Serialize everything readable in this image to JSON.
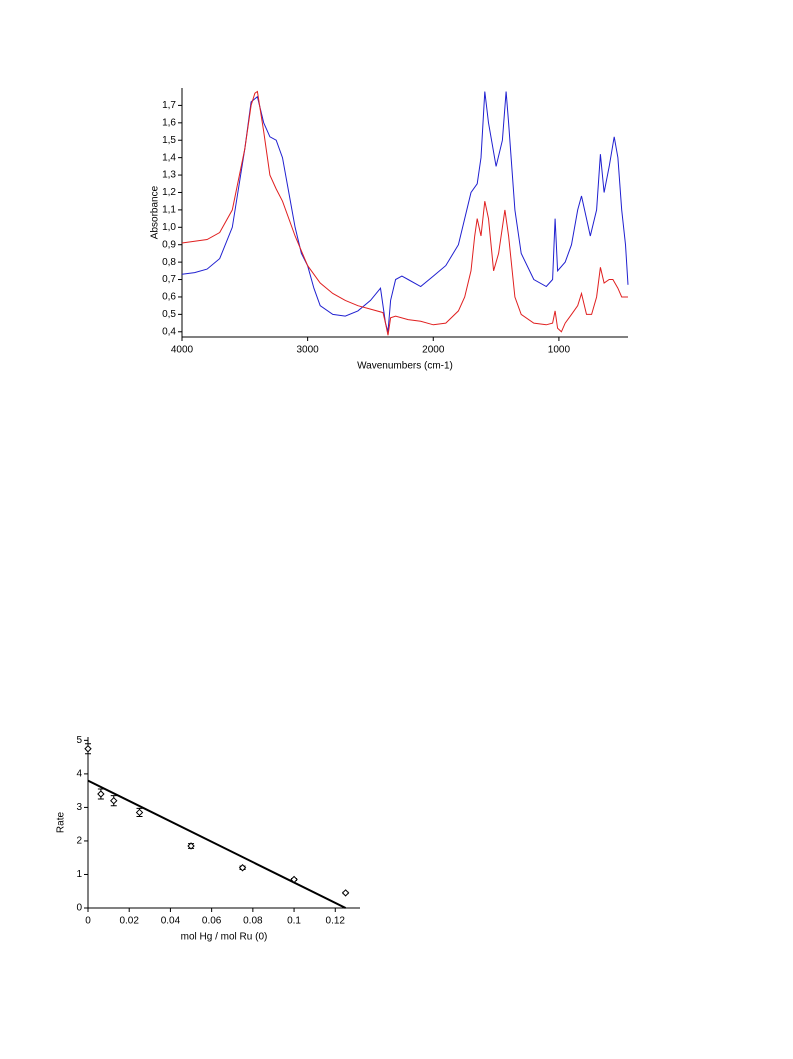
{
  "chart_data": [
    {
      "type": "line",
      "xlabel": "Wavenumbers (cm-1)",
      "ylabel": "Absorbance",
      "xlim": [
        4000,
        450
      ],
      "ylim": [
        0.37,
        1.8
      ],
      "xticks": [
        4000,
        3000,
        2000,
        1000
      ],
      "yticks": [
        {
          "value": 0.4,
          "label": "0,4"
        },
        {
          "value": 0.5,
          "label": "0,5"
        },
        {
          "value": 0.6,
          "label": "0,6"
        },
        {
          "value": 0.7,
          "label": "0,7"
        },
        {
          "value": 0.8,
          "label": "0,8"
        },
        {
          "value": 0.9,
          "label": "0,9"
        },
        {
          "value": 1.0,
          "label": "1,0"
        },
        {
          "value": 1.1,
          "label": "1,1"
        },
        {
          "value": 1.2,
          "label": "1,2"
        },
        {
          "value": 1.3,
          "label": "1,3"
        },
        {
          "value": 1.4,
          "label": "1,4"
        },
        {
          "value": 1.5,
          "label": "1,5"
        },
        {
          "value": 1.6,
          "label": "1,6"
        },
        {
          "value": 1.7,
          "label": "1,7"
        }
      ],
      "series": [
        {
          "color": "#2020d0",
          "x": [
            4000,
            3900,
            3800,
            3700,
            3600,
            3500,
            3450,
            3400,
            3350,
            3300,
            3250,
            3200,
            3150,
            3100,
            3050,
            3000,
            2950,
            2900,
            2800,
            2700,
            2600,
            2500,
            2420,
            2380,
            2360,
            2340,
            2300,
            2250,
            2200,
            2100,
            2000,
            1900,
            1800,
            1750,
            1700,
            1650,
            1620,
            1590,
            1560,
            1500,
            1450,
            1420,
            1400,
            1350,
            1300,
            1200,
            1100,
            1050,
            1030,
            1010,
            950,
            900,
            850,
            820,
            780,
            750,
            700,
            670,
            640,
            600,
            560,
            530,
            500,
            470,
            450
          ],
          "values": [
            0.73,
            0.74,
            0.76,
            0.82,
            1.0,
            1.45,
            1.72,
            1.75,
            1.6,
            1.52,
            1.5,
            1.4,
            1.2,
            1.0,
            0.85,
            0.78,
            0.65,
            0.55,
            0.5,
            0.49,
            0.52,
            0.58,
            0.65,
            0.45,
            0.4,
            0.58,
            0.7,
            0.72,
            0.7,
            0.66,
            0.72,
            0.78,
            0.9,
            1.05,
            1.2,
            1.25,
            1.4,
            1.78,
            1.6,
            1.35,
            1.5,
            1.78,
            1.6,
            1.1,
            0.85,
            0.7,
            0.66,
            0.7,
            1.05,
            0.75,
            0.8,
            0.9,
            1.1,
            1.18,
            1.05,
            0.95,
            1.1,
            1.42,
            1.2,
            1.35,
            1.52,
            1.4,
            1.1,
            0.9,
            0.67
          ]
        },
        {
          "color": "#e02020",
          "x": [
            4000,
            3900,
            3800,
            3700,
            3600,
            3500,
            3450,
            3420,
            3400,
            3350,
            3300,
            3250,
            3200,
            3100,
            3000,
            2900,
            2800,
            2700,
            2600,
            2500,
            2400,
            2380,
            2360,
            2340,
            2300,
            2200,
            2100,
            2000,
            1900,
            1800,
            1750,
            1700,
            1670,
            1650,
            1620,
            1590,
            1560,
            1520,
            1480,
            1430,
            1400,
            1350,
            1300,
            1200,
            1100,
            1050,
            1030,
            1010,
            980,
            950,
            900,
            850,
            820,
            780,
            740,
            700,
            670,
            640,
            600,
            570,
            530,
            500,
            450
          ],
          "values": [
            0.91,
            0.92,
            0.93,
            0.97,
            1.1,
            1.45,
            1.7,
            1.77,
            1.78,
            1.55,
            1.3,
            1.22,
            1.15,
            0.95,
            0.78,
            0.68,
            0.62,
            0.58,
            0.55,
            0.53,
            0.51,
            0.45,
            0.38,
            0.48,
            0.49,
            0.47,
            0.46,
            0.44,
            0.45,
            0.52,
            0.6,
            0.75,
            0.95,
            1.05,
            0.95,
            1.15,
            1.05,
            0.75,
            0.85,
            1.1,
            0.95,
            0.6,
            0.5,
            0.45,
            0.44,
            0.45,
            0.52,
            0.42,
            0.4,
            0.45,
            0.5,
            0.55,
            0.62,
            0.5,
            0.5,
            0.6,
            0.77,
            0.68,
            0.7,
            0.7,
            0.65,
            0.6,
            0.6
          ]
        }
      ]
    },
    {
      "type": "scatter",
      "xlabel": "mol Hg / mol Ru (0)",
      "ylabel": "Rate",
      "xlim": [
        0,
        0.132
      ],
      "ylim": [
        0,
        5.1
      ],
      "xticks": [
        0,
        0.02,
        0.04,
        0.06,
        0.08,
        0.1,
        0.12
      ],
      "yticks": [
        0,
        1,
        2,
        3,
        4,
        5
      ],
      "x": [
        0,
        0.00625,
        0.0125,
        0.025,
        0.05,
        0.075,
        0.1,
        0.125
      ],
      "values": [
        4.75,
        3.4,
        3.2,
        2.85,
        1.85,
        1.2,
        0.85,
        0.45
      ],
      "errors": [
        0.15,
        0.15,
        0.15,
        0.12,
        0.07,
        0.05,
        0.03,
        0.02
      ],
      "color": "#000000",
      "fit": {
        "x": [
          0,
          0.125
        ],
        "values": [
          3.8,
          0
        ]
      }
    }
  ]
}
